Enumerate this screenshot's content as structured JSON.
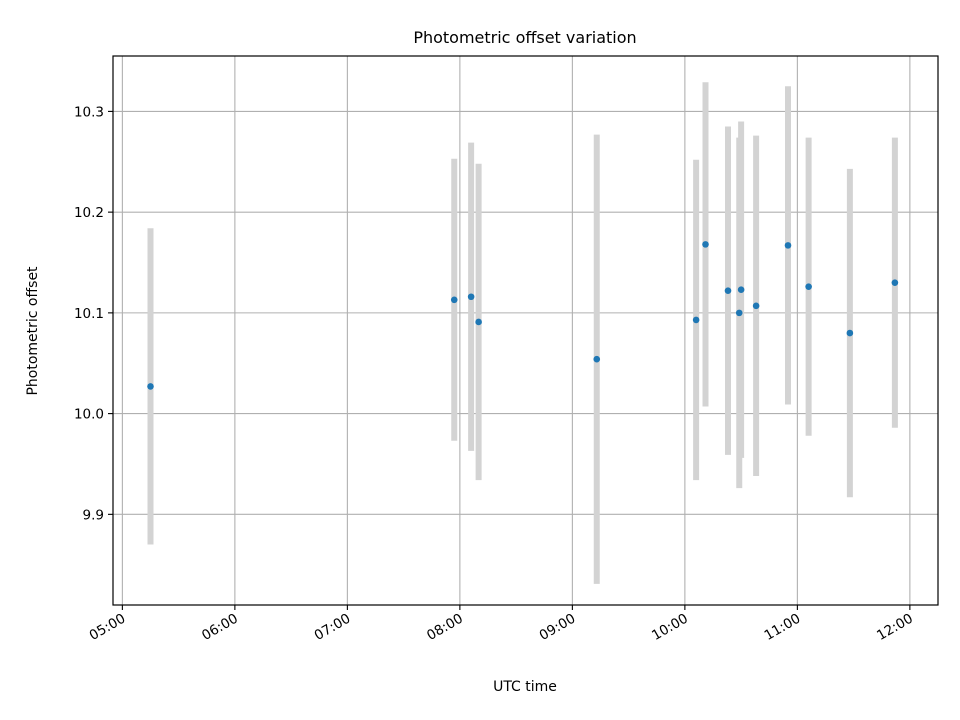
{
  "chart_data": {
    "type": "scatter",
    "title": "Photometric offset variation",
    "xlabel": "UTC time",
    "ylabel": "Photometric offset",
    "xlim": [
      "04:55",
      "12:15"
    ],
    "ylim": [
      9.81,
      10.355
    ],
    "xticks": [
      "05:00",
      "06:00",
      "07:00",
      "08:00",
      "09:00",
      "10:00",
      "11:00",
      "12:00"
    ],
    "yticks": [
      9.9,
      10.0,
      10.1,
      10.2,
      10.3
    ],
    "ytick_labels": [
      "9.9",
      "10.0",
      "10.1",
      "10.2",
      "10.3"
    ],
    "grid": true,
    "point_color": "#1f77b4",
    "errorbar_color": "#d3d3d3",
    "x_time": [
      "05:15",
      "07:57",
      "08:06",
      "08:10",
      "09:13",
      "10:06",
      "10:11",
      "10:23",
      "10:29",
      "10:30",
      "10:38",
      "10:55",
      "11:06",
      "11:28",
      "11:52"
    ],
    "y": [
      10.027,
      10.113,
      10.116,
      10.091,
      10.054,
      10.093,
      10.168,
      10.122,
      10.1,
      10.123,
      10.107,
      10.167,
      10.126,
      10.08,
      10.13
    ],
    "yerr": [
      0.157,
      0.14,
      0.153,
      0.157,
      0.223,
      0.159,
      0.161,
      0.163,
      0.174,
      0.167,
      0.169,
      0.158,
      0.148,
      0.163,
      0.144
    ]
  }
}
